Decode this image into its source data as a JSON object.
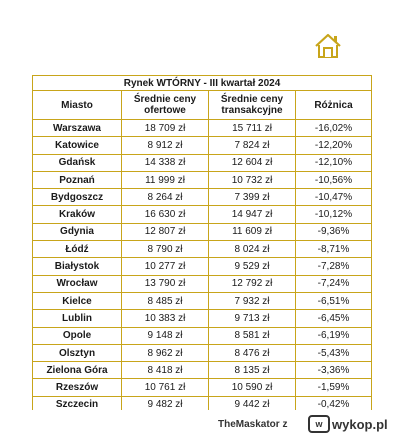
{
  "table": {
    "title": "Rynek WTÓRNY - III kwartał 2024",
    "headers": [
      "Miasto",
      "Średnie ceny ofertowe",
      "Średnie ceny transakcyjne",
      "Różnica"
    ],
    "rows": [
      [
        "Warszawa",
        "18 709 zł",
        "15 711 zł",
        "-16,02%"
      ],
      [
        "Katowice",
        "8 912 zł",
        "7 824 zł",
        "-12,20%"
      ],
      [
        "Gdańsk",
        "14 338 zł",
        "12 604 zł",
        "-12,10%"
      ],
      [
        "Poznań",
        "11 999 zł",
        "10 732 zł",
        "-10,56%"
      ],
      [
        "Bydgoszcz",
        "8 264 zł",
        "7 399 zł",
        "-10,47%"
      ],
      [
        "Kraków",
        "16 630 zł",
        "14 947 zł",
        "-10,12%"
      ],
      [
        "Gdynia",
        "12 807 zł",
        "11 609 zł",
        "-9,36%"
      ],
      [
        "Łódź",
        "8 790 zł",
        "8 024 zł",
        "-8,71%"
      ],
      [
        "Białystok",
        "10 277 zł",
        "9 529 zł",
        "-7,28%"
      ],
      [
        "Wrocław",
        "13 790 zł",
        "12 792 zł",
        "-7,24%"
      ],
      [
        "Kielce",
        "8 485 zł",
        "7 932 zł",
        "-6,51%"
      ],
      [
        "Lublin",
        "10 383 zł",
        "9 713 zł",
        "-6,45%"
      ],
      [
        "Opole",
        "9 148 zł",
        "8 581 zł",
        "-6,19%"
      ],
      [
        "Olsztyn",
        "8 962 zł",
        "8 476 zł",
        "-5,43%"
      ],
      [
        "Zielona Góra",
        "8 418 zł",
        "8 135 zł",
        "-3,36%"
      ],
      [
        "Rzeszów",
        "10 761 zł",
        "10 590 zł",
        "-1,59%"
      ],
      [
        "Szczecin",
        "9 482 zł",
        "9 442 zł",
        "-0,42%"
      ]
    ]
  },
  "footer": {
    "username": "TheMaskator",
    "separator": "z",
    "brand": "wykop.pl"
  },
  "colors": {
    "accent": "#c8a51a"
  },
  "icons": {
    "logo": "house-logo-icon",
    "brand": "wykop-logo-icon"
  }
}
